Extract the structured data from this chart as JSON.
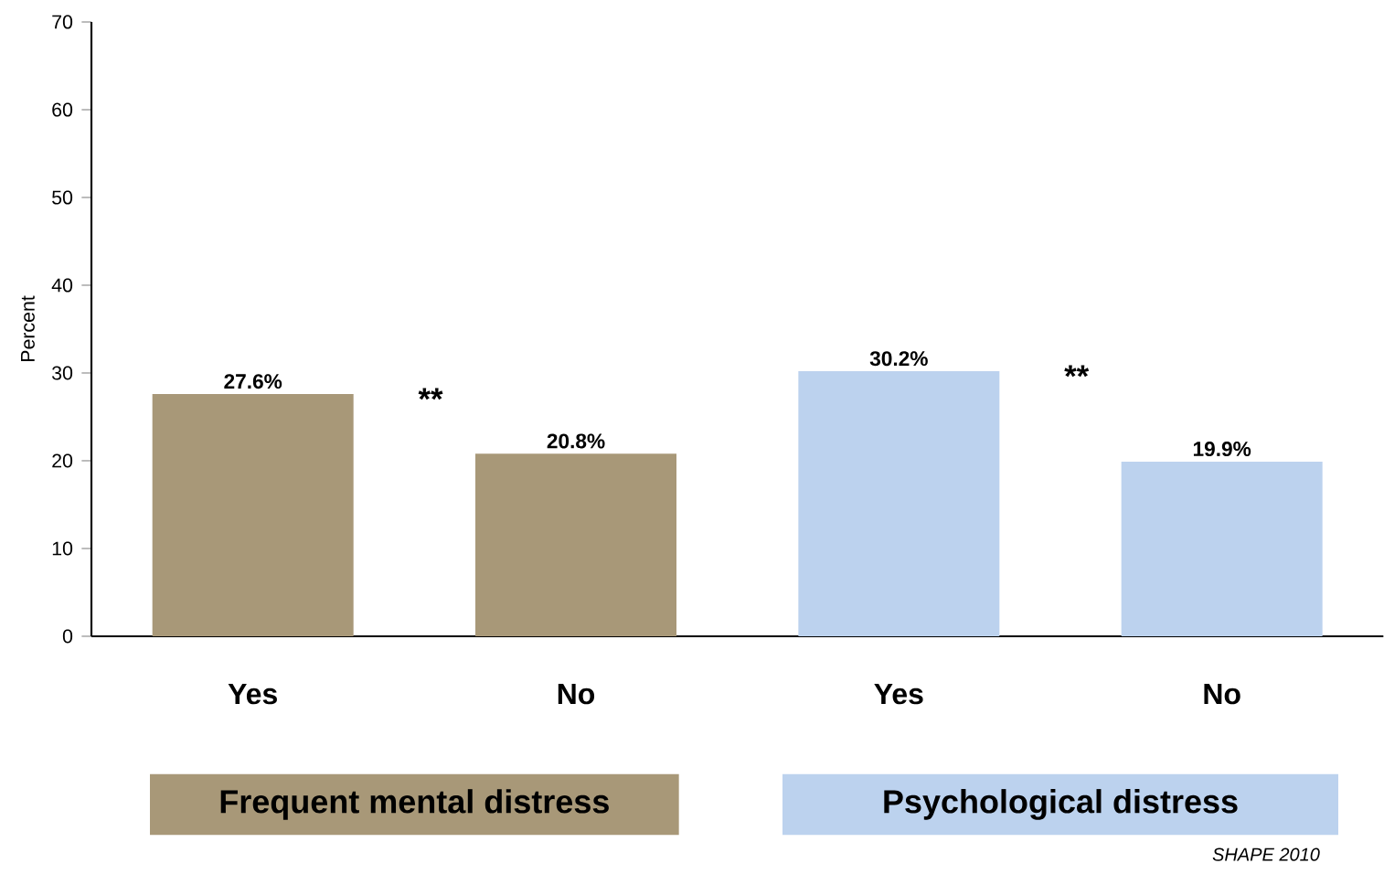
{
  "chart_data": {
    "type": "bar",
    "ylabel": "Percent",
    "categories": [
      "Yes",
      "No",
      "Yes",
      "No"
    ],
    "values": [
      27.6,
      20.8,
      30.2,
      19.9
    ],
    "value_labels": [
      "27.6%",
      "20.8%",
      "30.2%",
      "19.9%"
    ],
    "colors": [
      "#a89878",
      "#a89878",
      "#bcd2ee",
      "#bcd2ee"
    ],
    "ylim": [
      0,
      70
    ],
    "yticks": [
      0,
      10,
      20,
      30,
      40,
      50,
      60,
      70
    ],
    "grid": false,
    "legend": false,
    "annotations": [
      "**",
      "**",
      "Frequent mental distress",
      "Psychological distress",
      "SHAPE 2010"
    ]
  }
}
